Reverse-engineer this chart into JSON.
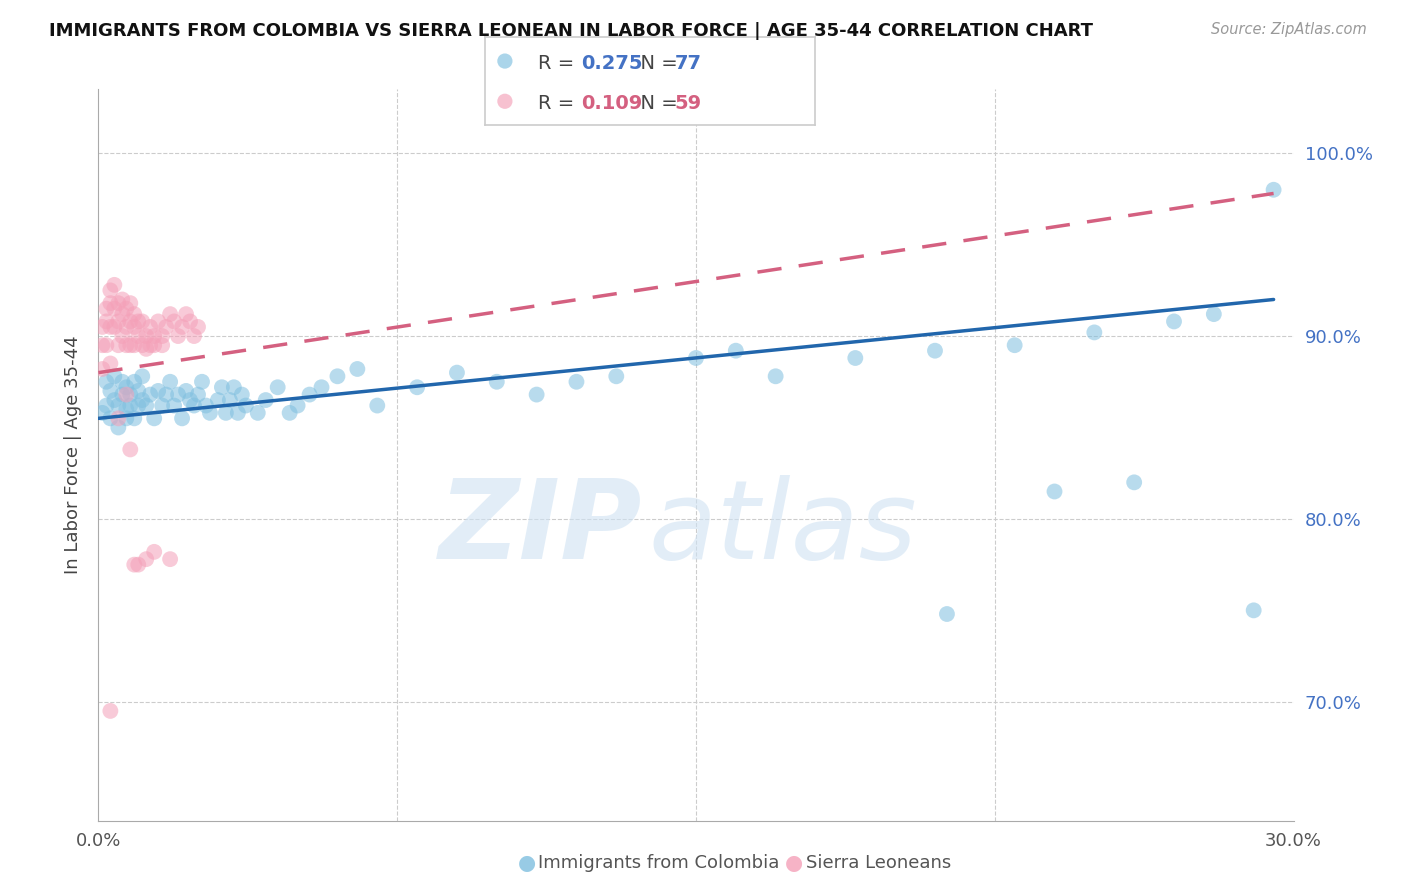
{
  "title": "IMMIGRANTS FROM COLOMBIA VS SIERRA LEONEAN IN LABOR FORCE | AGE 35-44 CORRELATION CHART",
  "source": "Source: ZipAtlas.com",
  "ylabel": "In Labor Force | Age 35-44",
  "xlim": [
    0.0,
    0.3
  ],
  "ylim": [
    0.635,
    1.035
  ],
  "right_yticks": [
    0.7,
    0.8,
    0.9,
    1.0
  ],
  "right_yticklabels": [
    "70.0%",
    "80.0%",
    "90.0%",
    "100.0%"
  ],
  "xticks": [
    0.0,
    0.075,
    0.15,
    0.225,
    0.3
  ],
  "xticklabels": [
    "0.0%",
    "",
    "",
    "",
    "30.0%"
  ],
  "colombia_R": 0.275,
  "colombia_N": 77,
  "sierraleone_R": 0.109,
  "sierraleone_N": 59,
  "colombia_color": "#7fbfdf",
  "sierraleone_color": "#f4a0b8",
  "colombia_line_color": "#2166ac",
  "sierraleone_line_color": "#d46080",
  "legend_label_colombia": "Immigrants from Colombia",
  "legend_label_sierraleone": "Sierra Leoneans",
  "colombia_trend_x": [
    0.0,
    0.295
  ],
  "colombia_trend_y": [
    0.855,
    0.92
  ],
  "sierraleone_trend_x": [
    0.0,
    0.295
  ],
  "sierraleone_trend_y": [
    0.88,
    0.978
  ],
  "colombia_scatter_x": [
    0.001,
    0.002,
    0.002,
    0.003,
    0.003,
    0.004,
    0.004,
    0.005,
    0.005,
    0.006,
    0.006,
    0.007,
    0.007,
    0.007,
    0.008,
    0.008,
    0.009,
    0.009,
    0.01,
    0.01,
    0.011,
    0.011,
    0.012,
    0.013,
    0.014,
    0.015,
    0.016,
    0.017,
    0.018,
    0.019,
    0.02,
    0.021,
    0.022,
    0.023,
    0.024,
    0.025,
    0.026,
    0.027,
    0.028,
    0.03,
    0.031,
    0.032,
    0.033,
    0.034,
    0.035,
    0.036,
    0.037,
    0.04,
    0.042,
    0.045,
    0.048,
    0.05,
    0.053,
    0.056,
    0.06,
    0.065,
    0.07,
    0.08,
    0.09,
    0.1,
    0.11,
    0.12,
    0.13,
    0.15,
    0.16,
    0.17,
    0.19,
    0.21,
    0.23,
    0.25,
    0.24,
    0.26,
    0.27,
    0.28,
    0.29,
    0.213,
    0.295
  ],
  "colombia_scatter_y": [
    0.858,
    0.862,
    0.875,
    0.855,
    0.87,
    0.865,
    0.878,
    0.862,
    0.85,
    0.868,
    0.875,
    0.86,
    0.872,
    0.855,
    0.868,
    0.862,
    0.875,
    0.855,
    0.862,
    0.87,
    0.865,
    0.878,
    0.862,
    0.868,
    0.855,
    0.87,
    0.862,
    0.868,
    0.875,
    0.862,
    0.868,
    0.855,
    0.87,
    0.865,
    0.862,
    0.868,
    0.875,
    0.862,
    0.858,
    0.865,
    0.872,
    0.858,
    0.865,
    0.872,
    0.858,
    0.868,
    0.862,
    0.858,
    0.865,
    0.872,
    0.858,
    0.862,
    0.868,
    0.872,
    0.878,
    0.882,
    0.862,
    0.872,
    0.88,
    0.875,
    0.868,
    0.875,
    0.878,
    0.888,
    0.892,
    0.878,
    0.888,
    0.892,
    0.895,
    0.902,
    0.815,
    0.82,
    0.908,
    0.912,
    0.75,
    0.748,
    0.98
  ],
  "sierraleone_scatter_x": [
    0.001,
    0.001,
    0.001,
    0.002,
    0.002,
    0.002,
    0.003,
    0.003,
    0.003,
    0.003,
    0.004,
    0.004,
    0.004,
    0.005,
    0.005,
    0.005,
    0.006,
    0.006,
    0.006,
    0.007,
    0.007,
    0.007,
    0.008,
    0.008,
    0.008,
    0.009,
    0.009,
    0.009,
    0.01,
    0.01,
    0.011,
    0.011,
    0.012,
    0.012,
    0.013,
    0.013,
    0.014,
    0.014,
    0.015,
    0.016,
    0.017,
    0.018,
    0.019,
    0.02,
    0.021,
    0.022,
    0.023,
    0.024,
    0.025,
    0.008,
    0.01,
    0.012,
    0.014,
    0.016,
    0.018,
    0.005,
    0.007,
    0.009,
    0.003
  ],
  "sierraleone_scatter_y": [
    0.882,
    0.895,
    0.905,
    0.915,
    0.908,
    0.895,
    0.925,
    0.918,
    0.905,
    0.885,
    0.928,
    0.915,
    0.905,
    0.918,
    0.908,
    0.895,
    0.92,
    0.912,
    0.9,
    0.915,
    0.905,
    0.895,
    0.918,
    0.908,
    0.895,
    0.912,
    0.905,
    0.895,
    0.908,
    0.9,
    0.895,
    0.908,
    0.9,
    0.893,
    0.905,
    0.895,
    0.9,
    0.895,
    0.908,
    0.9,
    0.905,
    0.912,
    0.908,
    0.9,
    0.905,
    0.912,
    0.908,
    0.9,
    0.905,
    0.838,
    0.775,
    0.778,
    0.782,
    0.895,
    0.778,
    0.855,
    0.868,
    0.775,
    0.695
  ]
}
